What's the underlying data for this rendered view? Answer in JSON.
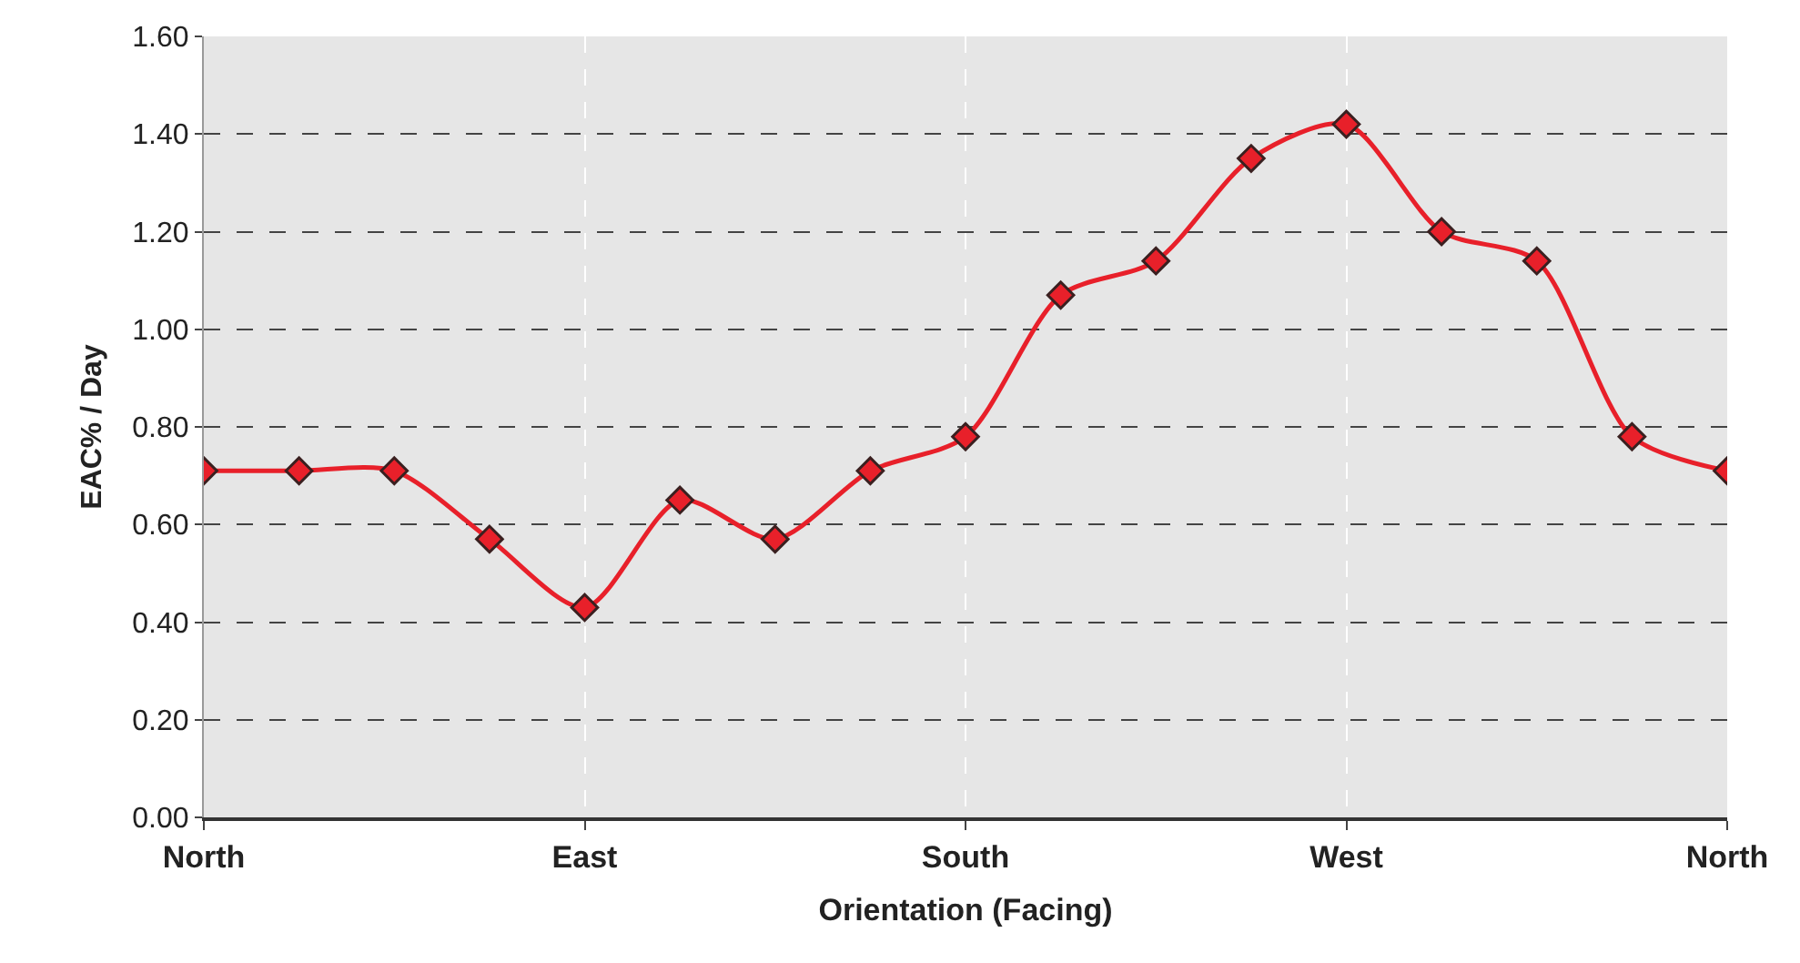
{
  "chart_data": {
    "type": "line",
    "xlabel": "Orientation (Facing)",
    "ylabel": "EAC% / Day",
    "categories": [
      "North",
      null,
      null,
      null,
      "East",
      null,
      null,
      null,
      "South",
      null,
      null,
      null,
      "West",
      null,
      null,
      null,
      "North"
    ],
    "series": [
      {
        "color": "#e8202a",
        "values": [
          0.71,
          0.71,
          0.71,
          0.57,
          0.43,
          0.65,
          0.57,
          0.71,
          0.78,
          1.07,
          1.14,
          1.35,
          1.42,
          1.2,
          1.14,
          0.78,
          0.71
        ]
      }
    ],
    "ylim": [
      0,
      1.6
    ],
    "yticks": [
      {
        "value": 0,
        "label": "0.00"
      },
      {
        "value": 0.2,
        "label": "0.20"
      },
      {
        "value": 0.4,
        "label": "0.40"
      },
      {
        "value": 0.6,
        "label": "0.60"
      },
      {
        "value": 0.8,
        "label": "0.80"
      },
      {
        "value": 1,
        "label": "1.00"
      },
      {
        "value": 1.2,
        "label": "1.20"
      },
      {
        "value": 1.4,
        "label": "1.40"
      },
      {
        "value": 1.6,
        "label": "1.60"
      }
    ],
    "grid": true,
    "marker": "diamond",
    "line_style": "solid"
  }
}
